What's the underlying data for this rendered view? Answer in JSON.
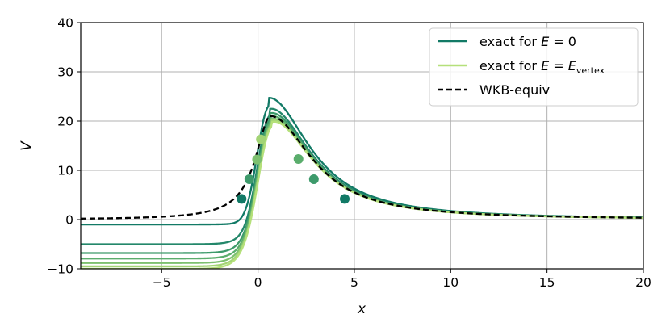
{
  "chart_data": {
    "type": "line",
    "xlabel": "x",
    "ylabel": "V",
    "xlim": [
      -9.2,
      20
    ],
    "ylim": [
      -10,
      40
    ],
    "xticks": [
      -5,
      0,
      5,
      10,
      15,
      20
    ],
    "yticks": [
      -10,
      0,
      10,
      20,
      30,
      40
    ],
    "xtick_labels": [
      "−5",
      "0",
      "5",
      "10",
      "15",
      "20"
    ],
    "ytick_labels": [
      "−10",
      "0",
      "10",
      "20",
      "30",
      "40"
    ],
    "grid": true,
    "legend_position": "top-right",
    "legend": [
      {
        "label": "exact for E = 0",
        "style": "solid",
        "color": "#127a66"
      },
      {
        "label": "exact for E = E_vertex",
        "style": "solid",
        "color": "#b5e07a"
      },
      {
        "label": "WKB-equiv",
        "style": "dashed",
        "color": "#000000"
      }
    ],
    "series": [
      {
        "plateau": -1.0,
        "peak": 24.8,
        "peak_x": 0.55,
        "color": "#127a66"
      },
      {
        "plateau": -5.0,
        "peak": 22.8,
        "peak_x": 0.6,
        "color": "#23876a"
      },
      {
        "plateau": -6.8,
        "peak": 22.0,
        "peak_x": 0.62,
        "color": "#3d9a6b"
      },
      {
        "plateau": -7.9,
        "peak": 21.4,
        "peak_x": 0.64,
        "color": "#5aad6c"
      },
      {
        "plateau": -8.8,
        "peak": 20.9,
        "peak_x": 0.66,
        "color": "#7dc06f"
      },
      {
        "plateau": -9.5,
        "peak": 20.6,
        "peak_x": 0.68,
        "color": "#a2d475"
      },
      {
        "plateau": -10.0,
        "peak": 20.3,
        "peak_x": 0.7,
        "color": "#b5e07a"
      },
      {
        "wkb": true,
        "plateau": 0.1,
        "peak": 21.0,
        "peak_x": 0.65,
        "color": "#000000"
      }
    ],
    "markers": [
      {
        "x": -0.85,
        "y": 4.2,
        "color": "#127a66"
      },
      {
        "x": -0.45,
        "y": 8.2,
        "color": "#3d9a6b"
      },
      {
        "x": -0.05,
        "y": 12.2,
        "color": "#7dc06f"
      },
      {
        "x": 0.15,
        "y": 16.3,
        "color": "#a2d475"
      },
      {
        "x": 2.1,
        "y": 12.3,
        "color": "#5aad6c"
      },
      {
        "x": 2.9,
        "y": 8.2,
        "color": "#3d9a6b"
      },
      {
        "x": 4.5,
        "y": 4.2,
        "color": "#127a66"
      }
    ]
  },
  "legend_text": {
    "exact_e0_prefix": "exact for ",
    "exact_e0_var": "E",
    "exact_e0_suffix": " = 0",
    "exact_ev_prefix": "exact for ",
    "exact_ev_var": "E",
    "exact_ev_eq": " = ",
    "exact_ev_var2": "E",
    "exact_ev_sub": "vertex",
    "wkb": "WKB-equiv"
  }
}
